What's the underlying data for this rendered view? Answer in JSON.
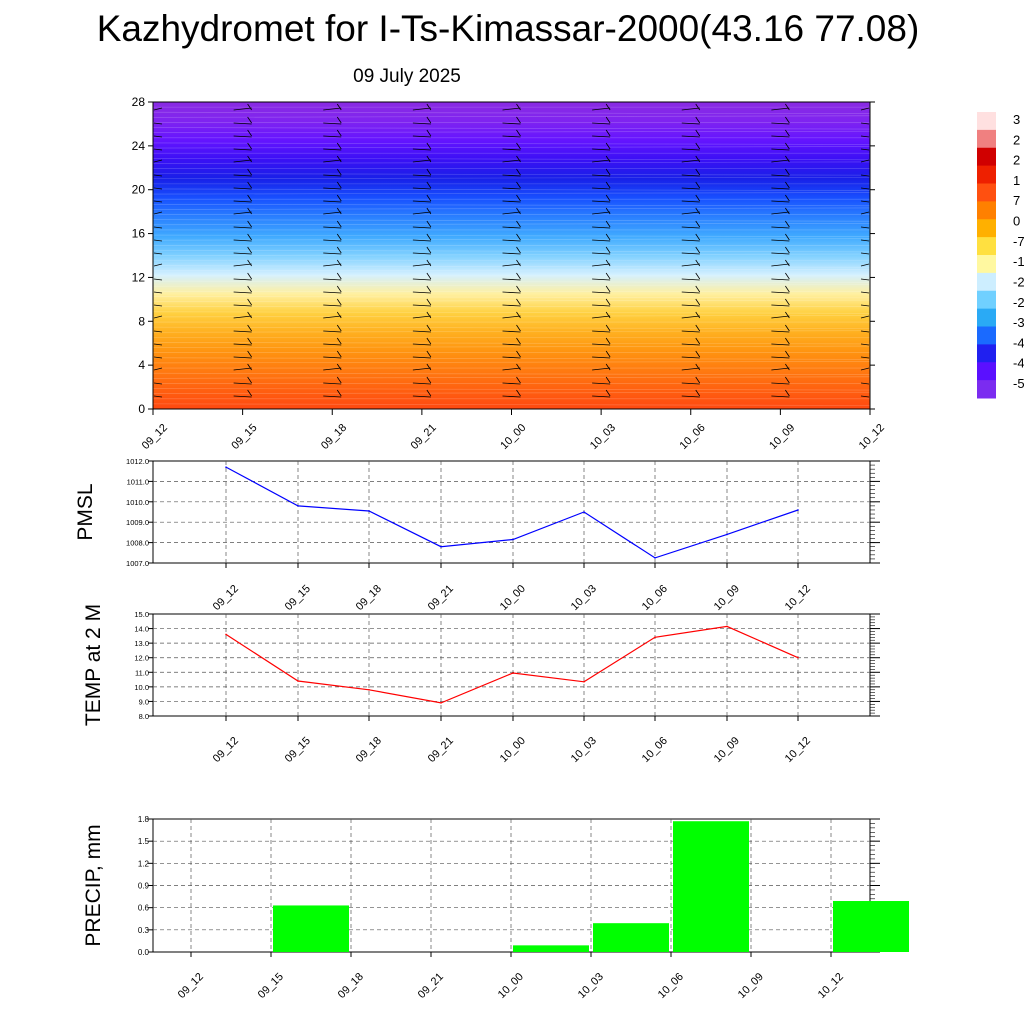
{
  "page": {
    "title": "Kazhydromet for I-Ts-Kimassar-2000(43.16 77.08)",
    "subtitle": "09 July 2025"
  },
  "colors": {
    "pmsl_line": "#0000ff",
    "temp_line": "#ff0000",
    "precip_bar": "#00ff00",
    "colorbar": [
      "#7b2cf0",
      "#5a10ff",
      "#2020f0",
      "#1a6aff",
      "#2aaaf5",
      "#70d0ff",
      "#cdeeff",
      "#fff8a0",
      "#ffe040",
      "#ffb000",
      "#ff8000",
      "#ff5010",
      "#ee2000",
      "#d00000",
      "#f08080",
      "#ffe0e0"
    ],
    "profile": [
      "#8a2be2",
      "#7f24f0",
      "#6414ff",
      "#3a10f5",
      "#1820e8",
      "#1850ff",
      "#2a80ff",
      "#40aaff",
      "#80d0ff",
      "#d4f0ff",
      "#fff0a0",
      "#ffd040",
      "#ffb020",
      "#ff9410",
      "#ff7a10",
      "#ff6010",
      "#ff4810"
    ]
  },
  "colorbar_labels": [
    "3",
    "2",
    "2",
    "1",
    "7",
    "0",
    "-7",
    "-1",
    "-2",
    "-2",
    "-3",
    "-4",
    "-4",
    "-5"
  ],
  "chart_data": [
    {
      "type": "heatmap",
      "title": "",
      "x": [
        "09_12",
        "09_15",
        "09_18",
        "09_21",
        "10_00",
        "10_03",
        "10_06",
        "10_09",
        "10_12"
      ],
      "ylim": [
        0,
        28
      ],
      "y_ticks": [
        "0",
        "4",
        "8",
        "12",
        "16",
        "20",
        "24",
        "28"
      ],
      "ylabel": "",
      "note_values": "color field with wind barbs (no numeric labels shown)"
    },
    {
      "type": "line",
      "ylabel": "PMSL",
      "x": [
        "09_12",
        "09_15",
        "09_18",
        "09_21",
        "10_00",
        "10_03",
        "10_06",
        "10_09",
        "10_12"
      ],
      "y_ticks": [
        "1007.0",
        "1008.0",
        "1009.0",
        "1010.0",
        "1011.0",
        "1012.0"
      ],
      "ylim": [
        1007.0,
        1012.0
      ],
      "values": [
        1011.7,
        1009.8,
        1009.55,
        1007.8,
        1008.15,
        1009.5,
        1007.25,
        1008.4,
        1009.6
      ]
    },
    {
      "type": "line",
      "ylabel": "TEMP at 2 M",
      "x": [
        "09_12",
        "09_15",
        "09_18",
        "09_21",
        "10_00",
        "10_03",
        "10_06",
        "10_09",
        "10_12"
      ],
      "y_ticks": [
        "8.0",
        "9.0",
        "10.0",
        "11.0",
        "12.0",
        "13.0",
        "14.0",
        "15.0"
      ],
      "ylim": [
        8.0,
        15.0
      ],
      "values": [
        13.6,
        10.4,
        9.8,
        8.9,
        10.95,
        10.35,
        13.4,
        14.15,
        12.0
      ]
    },
    {
      "type": "bar",
      "ylabel": "PRECIP, mm",
      "x": [
        "09_12",
        "09_15",
        "09_18",
        "09_21",
        "10_00",
        "10_03",
        "10_06",
        "10_09",
        "10_12"
      ],
      "y_ticks": [
        "0.0",
        "0.3",
        "0.6",
        "0.9",
        "1.2",
        "1.5",
        "1.8"
      ],
      "ylim": [
        0.0,
        1.8
      ],
      "values": [
        0.0,
        0.63,
        0.0,
        0.0,
        0.09,
        0.39,
        1.77,
        0.0,
        0.69
      ]
    }
  ]
}
